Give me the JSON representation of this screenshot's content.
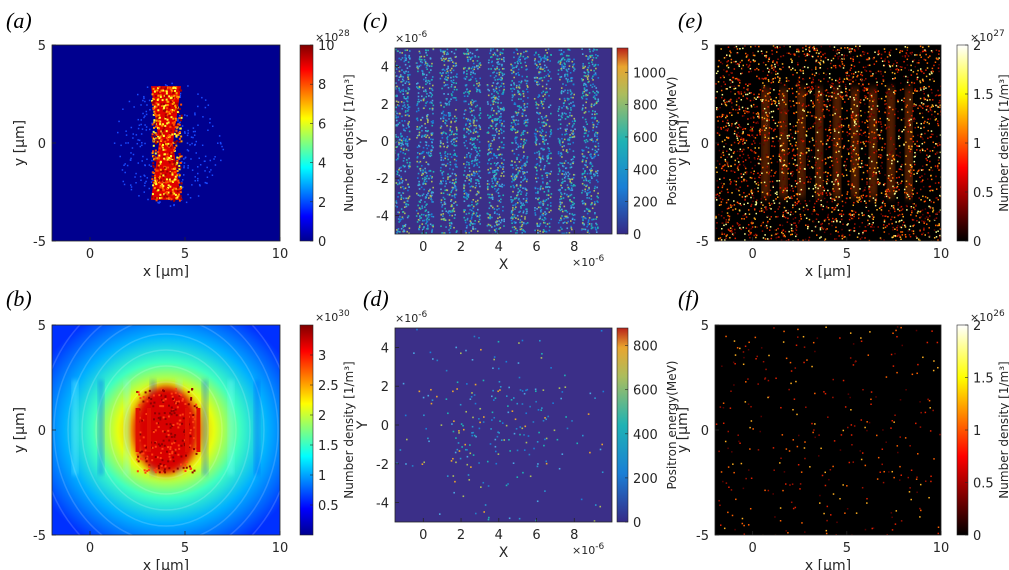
{
  "figure": {
    "panels": [
      {
        "id": "a",
        "label_open": "(",
        "label_letter": "a",
        "label_close": ")"
      },
      {
        "id": "b",
        "label_open": "(",
        "label_letter": "b",
        "label_close": ")"
      },
      {
        "id": "c",
        "label_open": "(",
        "label_letter": "c",
        "label_close": ")"
      },
      {
        "id": "d",
        "label_open": "(",
        "label_letter": "d",
        "label_close": ")"
      },
      {
        "id": "e",
        "label_open": "(",
        "label_letter": "e",
        "label_close": ")"
      },
      {
        "id": "f",
        "label_open": "(",
        "label_letter": "f",
        "label_close": ")"
      }
    ]
  },
  "chart_data": [
    {
      "id": "a",
      "type": "heatmap",
      "colormap": "jet",
      "xlabel": "x [μm]",
      "ylabel": "y [μm]",
      "xlim": [
        -2,
        10
      ],
      "ylim": [
        -5,
        5
      ],
      "xticks": [
        "0",
        "5",
        "10"
      ],
      "yticks": [
        "-5",
        "0",
        "5"
      ],
      "colorbar": {
        "label": "Number density [1/m³]",
        "min": 0,
        "max": 10,
        "ticks": [
          "0",
          "2",
          "4",
          "6",
          "8",
          "10"
        ],
        "exponent": "×10",
        "exponent_power": "28"
      },
      "background": "#00008f"
    },
    {
      "id": "b",
      "type": "heatmap",
      "colormap": "jet",
      "xlabel": "x [μm]",
      "ylabel": "y [μm]",
      "xlim": [
        -2,
        10
      ],
      "ylim": [
        -5,
        5
      ],
      "xticks": [
        "0",
        "5",
        "10"
      ],
      "yticks": [
        "-5",
        "0",
        "5"
      ],
      "colorbar": {
        "label": "Number density [1/m³]",
        "min": 0,
        "max": 3.5,
        "ticks": [
          "0.5",
          "1",
          "1.5",
          "2",
          "2.5",
          "3"
        ],
        "exponent": "×10",
        "exponent_power": "30"
      }
    },
    {
      "id": "c",
      "type": "scatter",
      "colormap": "parula",
      "xlabel": "X",
      "ylabel": "Y",
      "xlim": [
        -1.5,
        10
      ],
      "ylim": [
        -5,
        5
      ],
      "xticks": [
        "0",
        "2",
        "4",
        "6",
        "8"
      ],
      "yticks": [
        "-4",
        "-2",
        "0",
        "2",
        "4"
      ],
      "x_exponent": "×10",
      "x_exponent_power": "-6",
      "y_exponent": "×10",
      "y_exponent_power": "-6",
      "colorbar": {
        "label": "Positron energy(MeV)",
        "min": 0,
        "max": 1150,
        "ticks": [
          "0",
          "200",
          "400",
          "600",
          "800",
          "1000"
        ]
      },
      "background": "#3b2f88"
    },
    {
      "id": "d",
      "type": "scatter",
      "colormap": "parula",
      "xlabel": "X",
      "ylabel": "Y",
      "xlim": [
        -1.5,
        10
      ],
      "ylim": [
        -5,
        5
      ],
      "xticks": [
        "0",
        "2",
        "4",
        "6",
        "8"
      ],
      "yticks": [
        "-4",
        "-2",
        "0",
        "2",
        "4"
      ],
      "x_exponent": "×10",
      "x_exponent_power": "-6",
      "y_exponent": "×10",
      "y_exponent_power": "-6",
      "colorbar": {
        "label": "Positron energy(MeV)",
        "min": 0,
        "max": 880,
        "ticks": [
          "0",
          "200",
          "400",
          "600",
          "800"
        ]
      },
      "background": "#3b2f88"
    },
    {
      "id": "e",
      "type": "heatmap",
      "colormap": "hot",
      "xlabel": "x [μm]",
      "ylabel": "y [μm]",
      "xlim": [
        -2,
        10
      ],
      "ylim": [
        -5,
        5
      ],
      "xticks": [
        "0",
        "5",
        "10"
      ],
      "yticks": [
        "-5",
        "0",
        "5"
      ],
      "colorbar": {
        "label": "Number density [1/m³]",
        "min": 0,
        "max": 2,
        "ticks": [
          "0",
          "0.5",
          "1",
          "1.5",
          "2"
        ],
        "exponent": "×10",
        "exponent_power": "27"
      },
      "background": "#000000"
    },
    {
      "id": "f",
      "type": "heatmap",
      "colormap": "hot",
      "xlabel": "x [μm]",
      "ylabel": "y [μm]",
      "xlim": [
        -2,
        10
      ],
      "ylim": [
        -5,
        5
      ],
      "xticks": [
        "0",
        "5",
        "10"
      ],
      "yticks": [
        "-5",
        "0",
        "5"
      ],
      "colorbar": {
        "label": "Number density [1/m³]",
        "min": 0,
        "max": 2,
        "ticks": [
          "0",
          "0.5",
          "1",
          "1.5",
          "2"
        ],
        "exponent": "×10",
        "exponent_power": "26"
      },
      "background": "#000000"
    }
  ]
}
